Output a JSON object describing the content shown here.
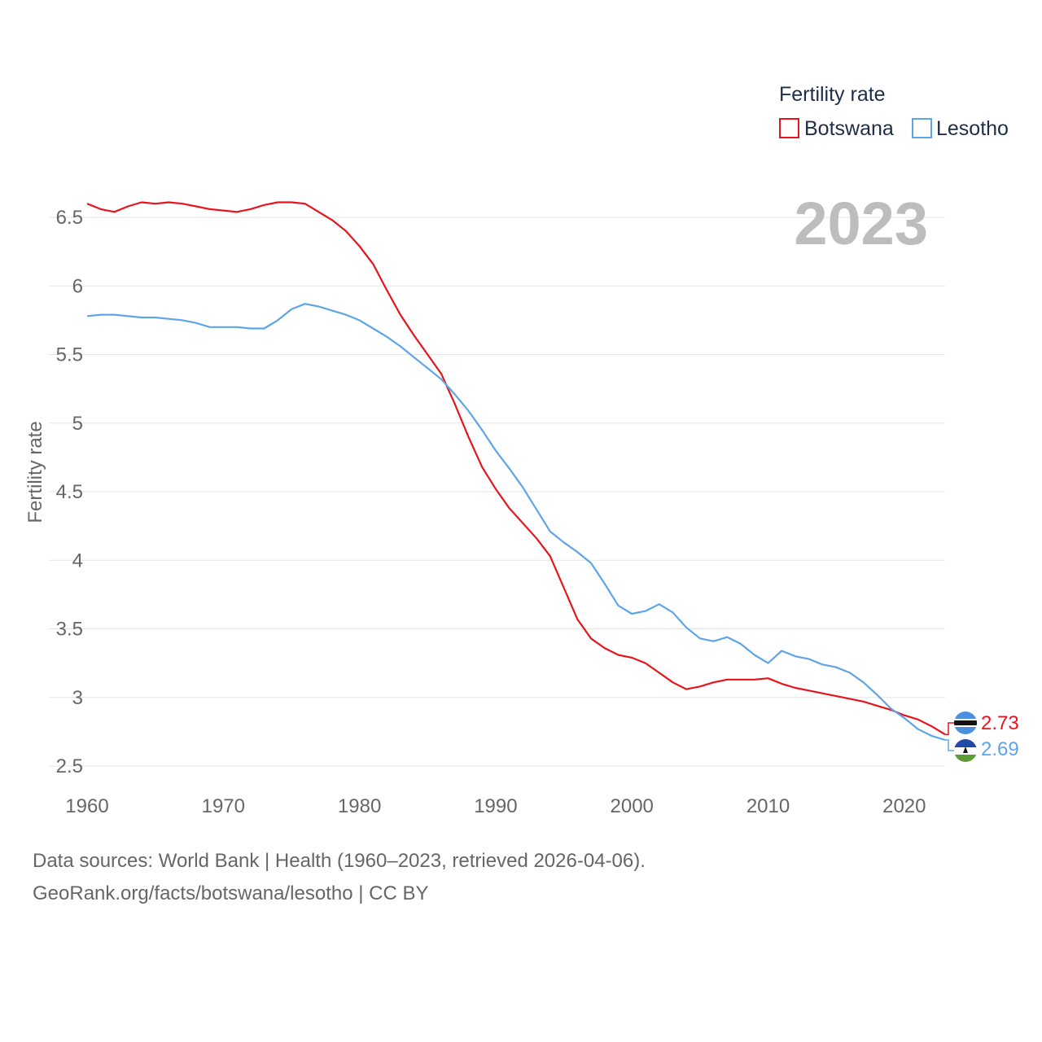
{
  "chart_data": {
    "type": "line",
    "legend_title": "Fertility rate",
    "ylabel": "Fertility rate",
    "year_label": "2023",
    "xlim": [
      1960,
      2023
    ],
    "ylim": [
      2.5,
      6.5
    ],
    "x_ticks": [
      "1960",
      "1970",
      "1980",
      "1990",
      "2000",
      "2010",
      "2020"
    ],
    "y_ticks": [
      "2.5",
      "3",
      "3.5",
      "4",
      "4.5",
      "5",
      "5.5",
      "6",
      "6.5"
    ],
    "x": [
      1960,
      1961,
      1962,
      1963,
      1964,
      1965,
      1966,
      1967,
      1968,
      1969,
      1970,
      1971,
      1972,
      1973,
      1974,
      1975,
      1976,
      1977,
      1978,
      1979,
      1980,
      1981,
      1982,
      1983,
      1984,
      1985,
      1986,
      1987,
      1988,
      1989,
      1990,
      1991,
      1992,
      1993,
      1994,
      1995,
      1996,
      1997,
      1998,
      1999,
      2000,
      2001,
      2002,
      2003,
      2004,
      2005,
      2006,
      2007,
      2008,
      2009,
      2010,
      2011,
      2012,
      2013,
      2014,
      2015,
      2016,
      2017,
      2018,
      2019,
      2020,
      2021,
      2022,
      2023
    ],
    "series": [
      {
        "name": "Botswana",
        "color": "#e8141c",
        "end_label": "2.73",
        "values": [
          6.6,
          6.56,
          6.54,
          6.58,
          6.61,
          6.6,
          6.61,
          6.6,
          6.58,
          6.56,
          6.55,
          6.54,
          6.56,
          6.59,
          6.61,
          6.61,
          6.6,
          6.54,
          6.48,
          6.4,
          6.29,
          6.16,
          5.97,
          5.79,
          5.64,
          5.5,
          5.36,
          5.14,
          4.9,
          4.68,
          4.52,
          4.38,
          4.27,
          4.16,
          4.03,
          3.8,
          3.57,
          3.43,
          3.36,
          3.31,
          3.29,
          3.25,
          3.18,
          3.11,
          3.06,
          3.08,
          3.11,
          3.13,
          3.13,
          3.13,
          3.14,
          3.1,
          3.07,
          3.05,
          3.03,
          3.01,
          2.99,
          2.97,
          2.94,
          2.91,
          2.87,
          2.84,
          2.79,
          2.73
        ]
      },
      {
        "name": "Lesotho",
        "color": "#5ea5e8",
        "end_label": "2.69",
        "values": [
          5.78,
          5.79,
          5.79,
          5.78,
          5.77,
          5.77,
          5.76,
          5.75,
          5.73,
          5.7,
          5.7,
          5.7,
          5.69,
          5.69,
          5.75,
          5.83,
          5.87,
          5.85,
          5.82,
          5.79,
          5.75,
          5.69,
          5.63,
          5.56,
          5.48,
          5.4,
          5.32,
          5.21,
          5.09,
          4.95,
          4.8,
          4.67,
          4.53,
          4.37,
          4.21,
          4.13,
          4.06,
          3.98,
          3.83,
          3.67,
          3.61,
          3.63,
          3.68,
          3.62,
          3.51,
          3.43,
          3.41,
          3.44,
          3.39,
          3.31,
          3.25,
          3.34,
          3.3,
          3.28,
          3.24,
          3.22,
          3.18,
          3.11,
          3.02,
          2.92,
          2.85,
          2.77,
          2.72,
          2.69
        ]
      }
    ]
  },
  "footer": {
    "line1": "Data sources: World Bank | Health (1960–2023, retrieved 2026-04-06).",
    "line2": "GeoRank.org/facts/botswana/lesotho | CC BY"
  }
}
